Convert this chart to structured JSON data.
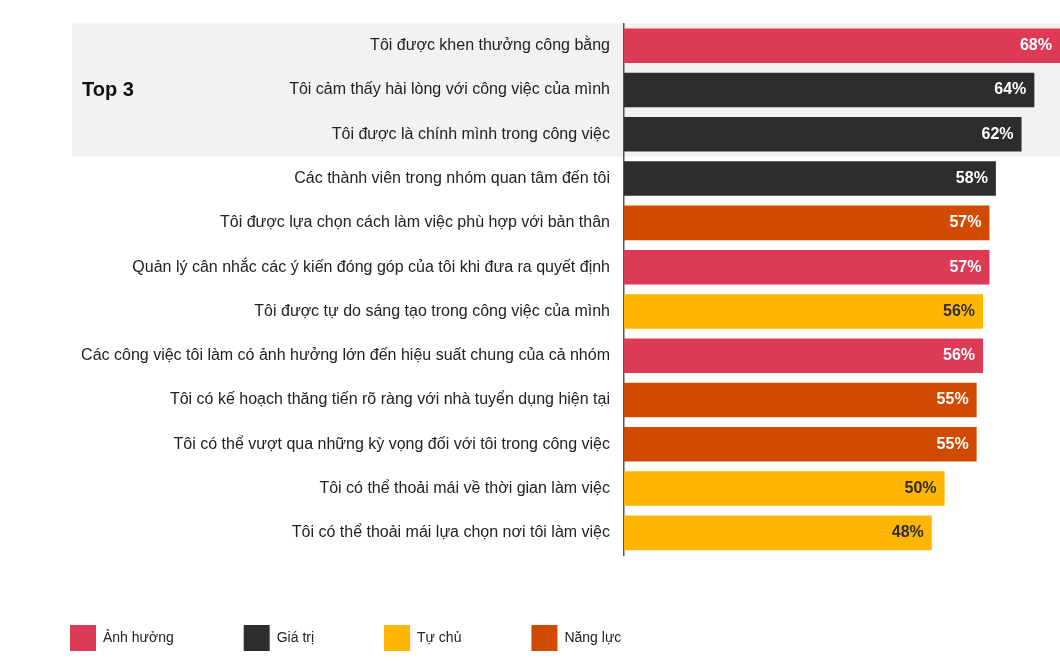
{
  "chart_data": {
    "type": "bar",
    "orientation": "horizontal",
    "categories": [
      "Tôi được khen thưởng công bằng",
      "Tôi cảm thấy hài lòng với công việc của mình",
      "Tôi được là chính mình trong công việc",
      "Các thành viên trong nhóm quan tâm đến tôi",
      "Tôi được lựa chọn cách làm việc phù hợp với bản thân",
      "Quản lý cân nhắc các ý kiến đóng góp của tôi khi đưa ra quyết định",
      "Tôi được tự do sáng tạo trong công việc của mình",
      "Các công việc tôi làm có ảnh hưởng lớn đến hiệu suất chung của cả nhóm",
      "Tôi có kế hoạch thăng tiến rõ ràng với nhà tuyển dụng hiện tại",
      "Tôi có thể vượt qua những kỳ vọng đối với tôi trong công việc",
      "Tôi có thể thoải mái về thời gian làm việc",
      "Tôi có thể thoải mái lựa chọn nơi tôi làm việc"
    ],
    "series": [
      {
        "name": "Ảnh hưởng",
        "color": "#dc3a55",
        "values": [
          68,
          null,
          null,
          null,
          null,
          57,
          null,
          56,
          null,
          null,
          null,
          null
        ],
        "value_labels": [
          "68%",
          null,
          null,
          null,
          null,
          "57%",
          null,
          "56%",
          null,
          null,
          null,
          null
        ]
      },
      {
        "name": "Giá trị",
        "color": "#2d2d2d",
        "values": [
          null,
          64,
          62,
          58,
          null,
          null,
          null,
          null,
          null,
          null,
          null,
          null
        ],
        "value_labels": [
          null,
          "64%",
          "62%",
          "58%",
          null,
          null,
          null,
          null,
          null,
          null,
          null,
          null
        ]
      },
      {
        "name": "Tự chủ",
        "color": "#ffb600",
        "values": [
          null,
          null,
          null,
          null,
          null,
          null,
          56,
          null,
          null,
          null,
          50,
          48
        ],
        "value_labels": [
          null,
          null,
          null,
          null,
          null,
          null,
          "56%",
          null,
          null,
          null,
          "50%",
          "48%"
        ]
      },
      {
        "name": "Năng lực",
        "color": "#d04a02",
        "values": [
          null,
          null,
          null,
          null,
          57,
          null,
          null,
          null,
          55,
          55,
          null,
          null
        ],
        "value_labels": [
          null,
          null,
          null,
          null,
          "57%",
          null,
          null,
          null,
          "55%",
          "55%",
          null,
          null
        ]
      }
    ],
    "xlim": [
      0,
      68
    ],
    "tick_labels": "y",
    "grid": false,
    "legend": "bottom left",
    "bands": [
      {
        "axis": "y",
        "from": "Tôi được khen thưởng công bằng",
        "to": "Tôi được là chính mình trong công việc",
        "label": "Top 3",
        "color": "#f2f2f2"
      }
    ]
  }
}
